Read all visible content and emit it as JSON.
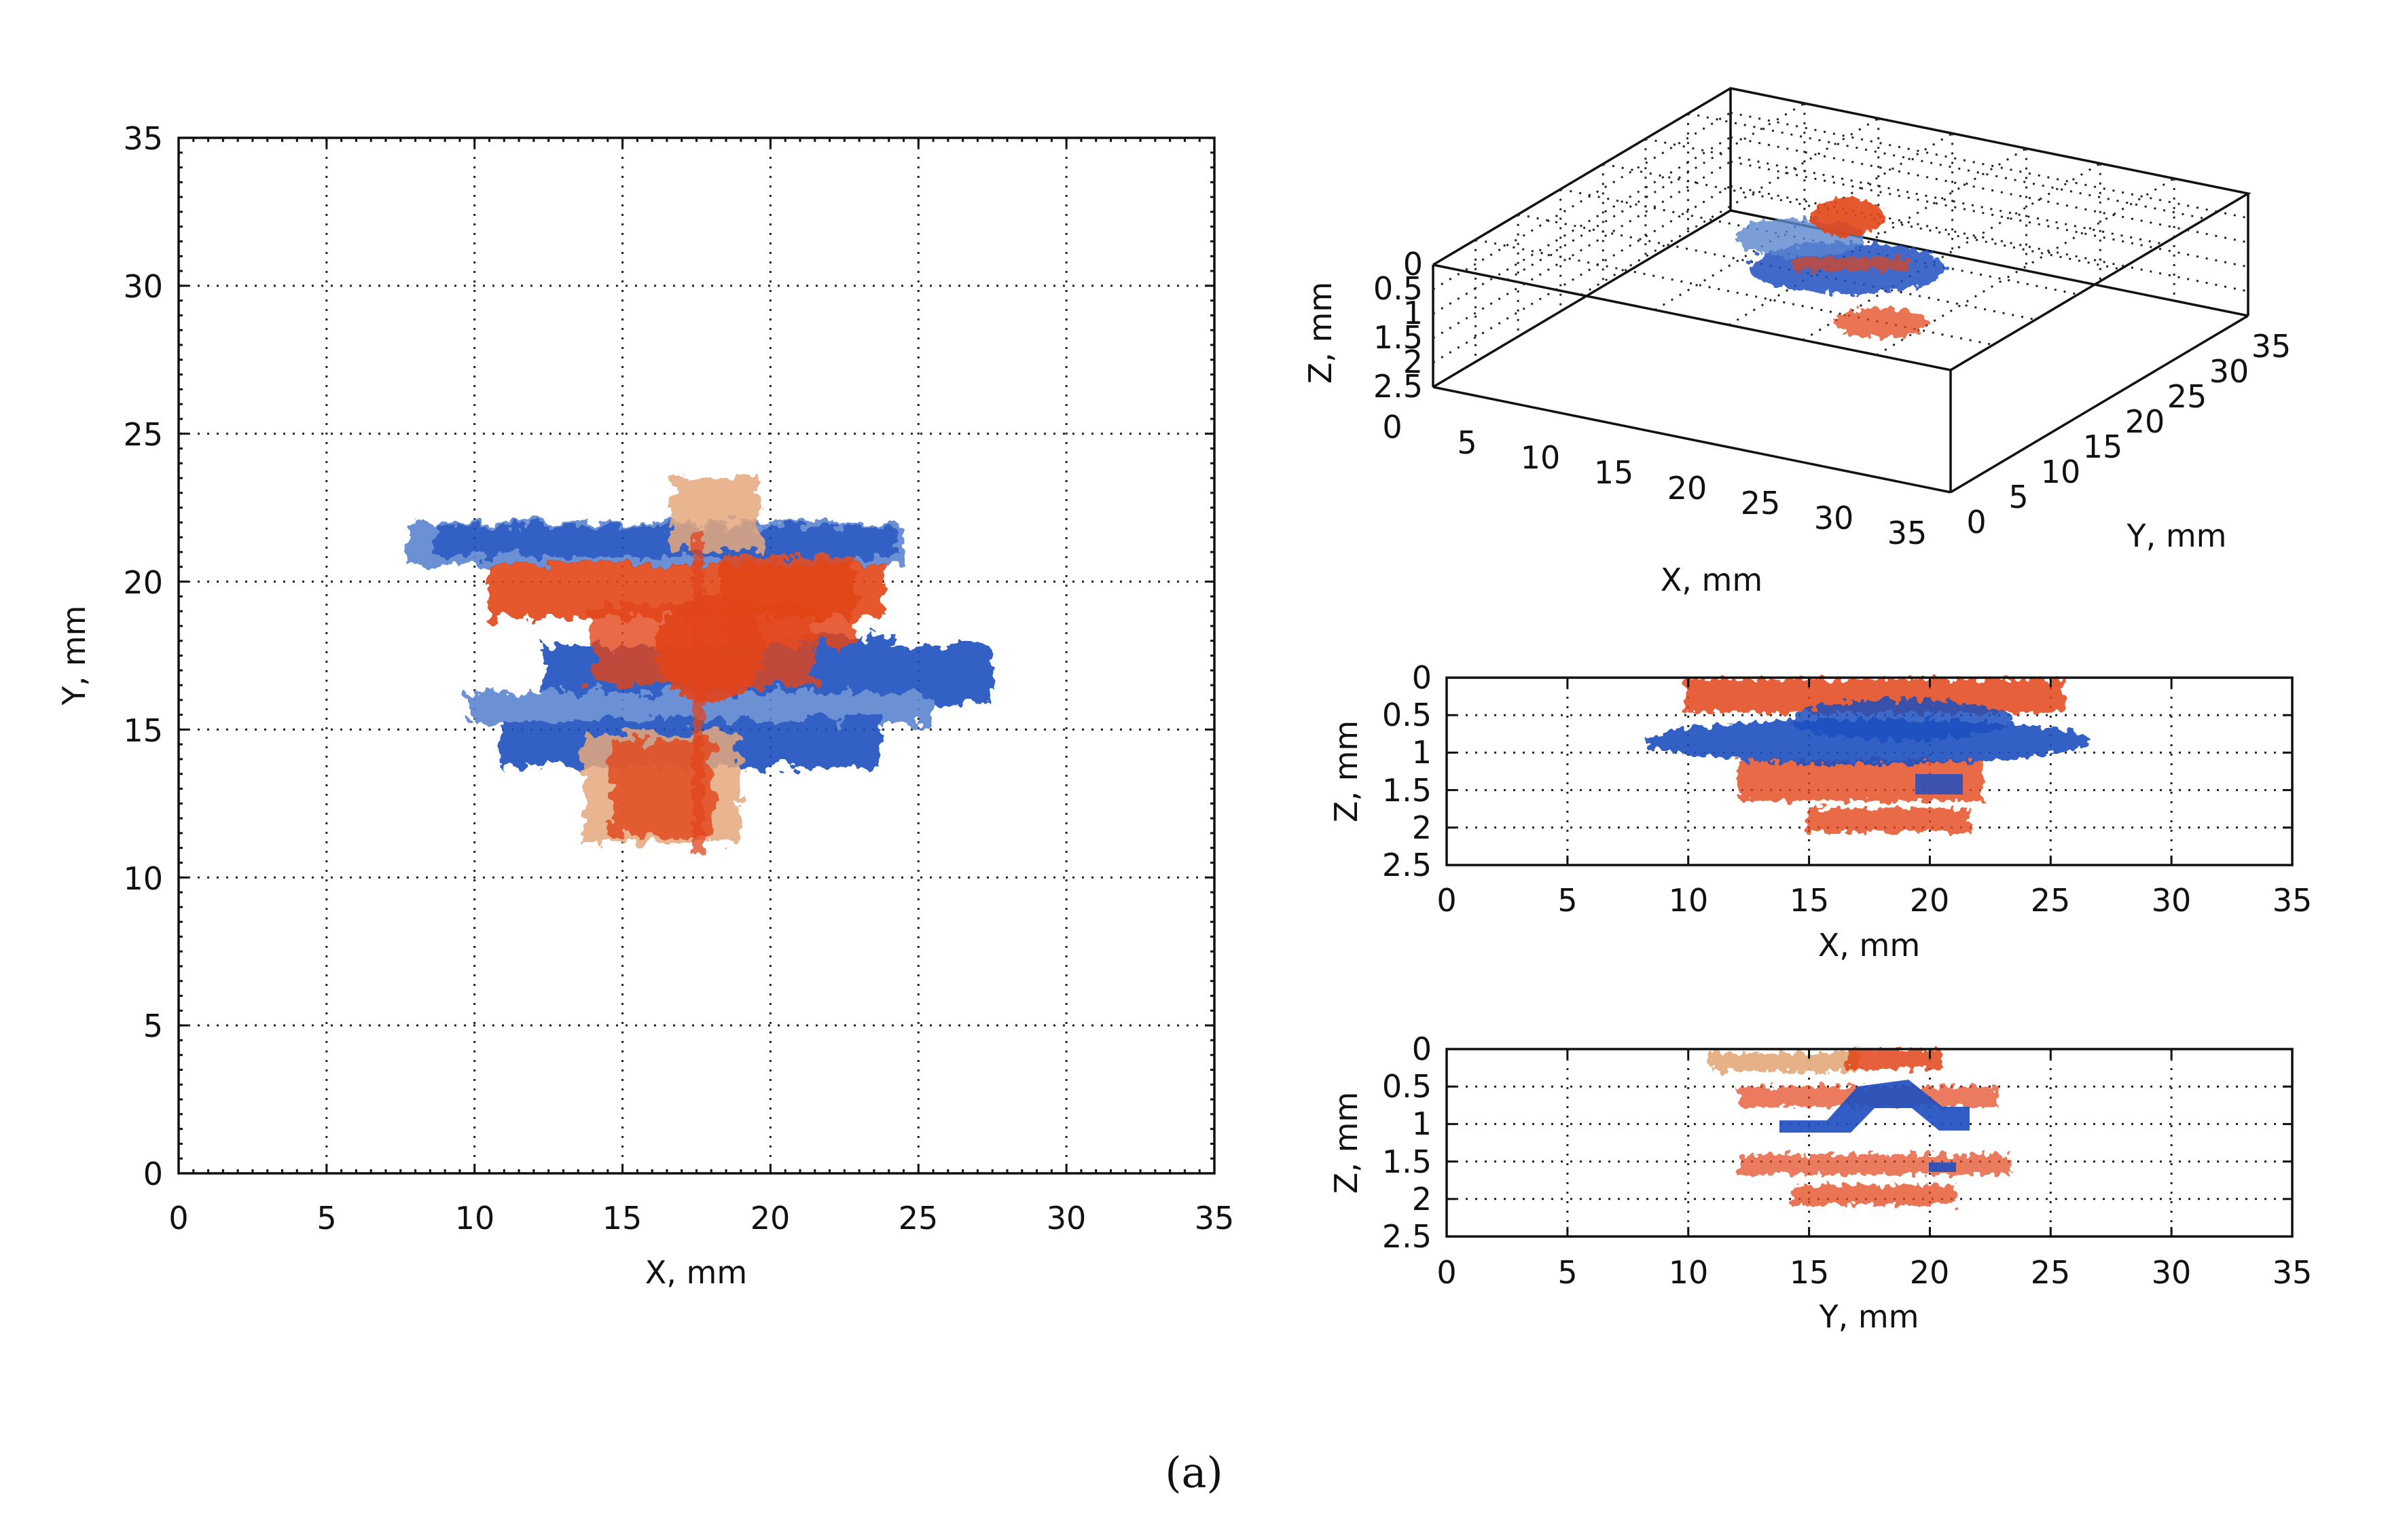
{
  "caption": "(a)",
  "colors": {
    "blue": "#1f4fbf",
    "light_blue": "#5b86d0",
    "orange": "#e2451a",
    "tan": "#e4a87c"
  },
  "chart_data": [
    {
      "id": "xy",
      "type": "scatter",
      "title": "",
      "xlabel": "X, mm",
      "ylabel": "Y, mm",
      "xlim": [
        0,
        35
      ],
      "ylim": [
        0,
        35
      ],
      "xticks": [
        "0",
        "5",
        "10",
        "15",
        "20",
        "25",
        "30",
        "35"
      ],
      "yticks": [
        "0",
        "5",
        "10",
        "15",
        "20",
        "25",
        "30",
        "35"
      ],
      "grid": true,
      "series": [
        {
          "color": "blue",
          "regions": [
            {
              "x": [
                8,
                24.5
              ],
              "y": [
                20.2,
                21.8
              ]
            },
            {
              "x": [
                13,
                26.5
              ],
              "y": [
                15.5,
                17.2
              ]
            },
            {
              "x": [
                11,
                23.5
              ],
              "y": [
                14,
                17
              ]
            }
          ]
        },
        {
          "color": "orange",
          "regions": [
            {
              "x": [
                10.5,
                25
              ],
              "y": [
                17,
                21
              ]
            },
            {
              "x": [
                14,
                21.5
              ],
              "y": [
                11,
                24
              ]
            }
          ]
        }
      ]
    },
    {
      "id": "3d",
      "type": "scatter",
      "title": "",
      "xlabel": "X, mm",
      "ylabel": "Y, mm",
      "zlabel": "Z, mm",
      "xlim": [
        0,
        35
      ],
      "ylim": [
        0,
        35
      ],
      "zlim": [
        0,
        2.5
      ],
      "xticks": [
        "0",
        "5",
        "10",
        "15",
        "20",
        "25",
        "30",
        "35"
      ],
      "yticks": [
        "0",
        "5",
        "10",
        "15",
        "20",
        "25",
        "30",
        "35"
      ],
      "zticks": [
        "0",
        "0.5",
        "1",
        "1.5",
        "2",
        "2.5"
      ],
      "grid": true
    },
    {
      "id": "xz",
      "type": "scatter",
      "title": "",
      "xlabel": "X, mm",
      "ylabel": "Z, mm",
      "xlim": [
        0,
        35
      ],
      "ylim": [
        2.5,
        0
      ],
      "xticks": [
        "0",
        "5",
        "10",
        "15",
        "20",
        "25",
        "30",
        "35"
      ],
      "yticks": [
        "0",
        "0.5",
        "1",
        "1.5",
        "2",
        "2.5"
      ],
      "grid": true,
      "series": [
        {
          "color": "blue",
          "regions": [
            {
              "x": [
                8,
                27.5
              ],
              "y": [
                0.6,
                1.15
              ]
            }
          ]
        },
        {
          "color": "orange",
          "regions": [
            {
              "x": [
                10,
                25
              ],
              "y": [
                0,
                0.4
              ]
            },
            {
              "x": [
                12,
                22
              ],
              "y": [
                1.2,
                2.1
              ]
            }
          ]
        }
      ]
    },
    {
      "id": "yz",
      "type": "scatter",
      "title": "",
      "xlabel": "Y, mm",
      "ylabel": "Z, mm",
      "xlim": [
        0,
        35
      ],
      "ylim": [
        2.5,
        0
      ],
      "xticks": [
        "0",
        "5",
        "10",
        "15",
        "20",
        "25",
        "30",
        "35"
      ],
      "yticks": [
        "0",
        "0.5",
        "1",
        "1.5",
        "2",
        "2.5"
      ],
      "grid": true,
      "series": [
        {
          "color": "blue",
          "regions": [
            {
              "x": [
                13.8,
                21.8
              ],
              "y": [
                0.4,
                1.1
              ]
            }
          ]
        },
        {
          "color": "orange",
          "regions": [
            {
              "x": [
                11,
                23
              ],
              "y": [
                0,
                2.1
              ]
            }
          ]
        }
      ]
    }
  ]
}
